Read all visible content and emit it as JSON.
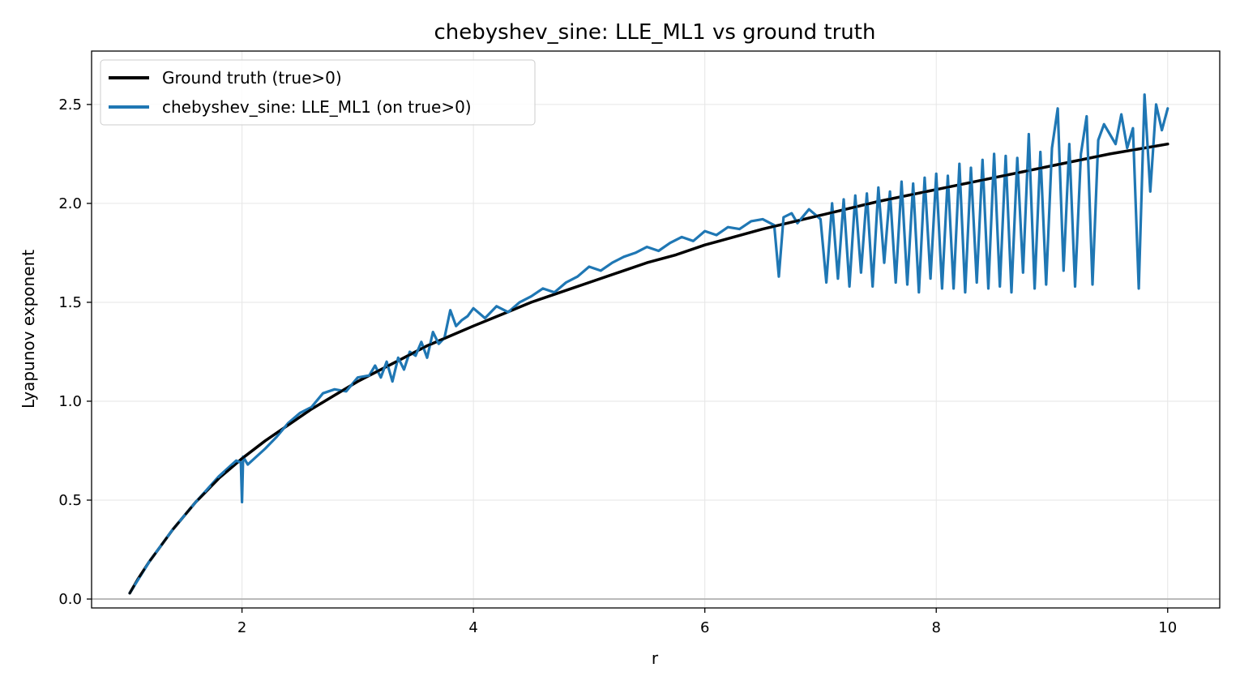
{
  "chart_data": {
    "type": "line",
    "title": "chebyshev_sine: LLE_ML1 vs ground truth",
    "xlabel": "r",
    "ylabel": "Lyapunov exponent",
    "xlim": [
      0.7,
      10.45
    ],
    "ylim": [
      -0.045,
      2.77
    ],
    "xticks": [
      2,
      4,
      6,
      8,
      10
    ],
    "yticks": [
      0.0,
      0.5,
      1.0,
      1.5,
      2.0,
      2.5
    ],
    "grid": true,
    "reference_line_y": 0,
    "legend_placement": "top-left",
    "series": [
      {
        "name": "Ground truth (true>0)",
        "color": "#000000",
        "x": [
          1.03,
          1.1,
          1.2,
          1.3,
          1.4,
          1.5,
          1.6,
          1.7,
          1.8,
          1.9,
          2.0,
          2.2,
          2.4,
          2.6,
          2.8,
          3.0,
          3.2,
          3.4,
          3.6,
          3.8,
          4.0,
          4.25,
          4.5,
          4.75,
          5.0,
          5.25,
          5.5,
          5.75,
          6.0,
          6.5,
          7.0,
          7.5,
          8.0,
          8.5,
          9.0,
          9.5,
          10.0
        ],
        "y": [
          0.03,
          0.1,
          0.19,
          0.27,
          0.35,
          0.42,
          0.49,
          0.55,
          0.61,
          0.66,
          0.71,
          0.8,
          0.88,
          0.96,
          1.03,
          1.1,
          1.16,
          1.22,
          1.28,
          1.33,
          1.38,
          1.44,
          1.5,
          1.55,
          1.6,
          1.65,
          1.7,
          1.74,
          1.79,
          1.87,
          1.94,
          2.01,
          2.07,
          2.13,
          2.19,
          2.25,
          2.3
        ]
      },
      {
        "name": "chebyshev_sine: LLE_ML1 (on true>0)",
        "color": "#1f77b4",
        "x": [
          1.03,
          1.2,
          1.4,
          1.6,
          1.8,
          1.95,
          1.99,
          2.0,
          2.01,
          2.05,
          2.2,
          2.3,
          2.4,
          2.5,
          2.6,
          2.7,
          2.8,
          2.9,
          3.0,
          3.1,
          3.15,
          3.2,
          3.25,
          3.3,
          3.35,
          3.4,
          3.45,
          3.5,
          3.55,
          3.6,
          3.65,
          3.7,
          3.75,
          3.8,
          3.85,
          3.9,
          3.95,
          4.0,
          4.1,
          4.2,
          4.3,
          4.4,
          4.5,
          4.6,
          4.7,
          4.8,
          4.9,
          5.0,
          5.1,
          5.2,
          5.3,
          5.4,
          5.5,
          5.6,
          5.7,
          5.8,
          5.9,
          6.0,
          6.1,
          6.2,
          6.3,
          6.4,
          6.5,
          6.6,
          6.64,
          6.68,
          6.75,
          6.8,
          6.9,
          7.0,
          7.05,
          7.1,
          7.15,
          7.2,
          7.25,
          7.3,
          7.35,
          7.4,
          7.45,
          7.5,
          7.55,
          7.6,
          7.65,
          7.7,
          7.75,
          7.8,
          7.85,
          7.9,
          7.95,
          8.0,
          8.05,
          8.1,
          8.15,
          8.2,
          8.25,
          8.3,
          8.35,
          8.4,
          8.45,
          8.5,
          8.55,
          8.6,
          8.65,
          8.7,
          8.75,
          8.8,
          8.85,
          8.9,
          8.95,
          9.0,
          9.05,
          9.1,
          9.15,
          9.2,
          9.25,
          9.3,
          9.35,
          9.4,
          9.45,
          9.5,
          9.55,
          9.6,
          9.65,
          9.7,
          9.75,
          9.8,
          9.85,
          9.9,
          9.95,
          10.0
        ],
        "y": [
          0.03,
          0.19,
          0.35,
          0.49,
          0.62,
          0.7,
          0.69,
          0.49,
          0.72,
          0.68,
          0.76,
          0.82,
          0.89,
          0.94,
          0.97,
          1.04,
          1.06,
          1.05,
          1.12,
          1.13,
          1.18,
          1.12,
          1.2,
          1.1,
          1.22,
          1.16,
          1.25,
          1.23,
          1.3,
          1.22,
          1.35,
          1.29,
          1.32,
          1.46,
          1.38,
          1.41,
          1.43,
          1.47,
          1.42,
          1.48,
          1.45,
          1.5,
          1.53,
          1.57,
          1.55,
          1.6,
          1.63,
          1.68,
          1.66,
          1.7,
          1.73,
          1.75,
          1.78,
          1.76,
          1.8,
          1.83,
          1.81,
          1.86,
          1.84,
          1.88,
          1.87,
          1.91,
          1.92,
          1.89,
          1.63,
          1.93,
          1.95,
          1.9,
          1.97,
          1.92,
          1.6,
          2.0,
          1.62,
          2.02,
          1.58,
          2.04,
          1.65,
          2.05,
          1.58,
          2.08,
          1.7,
          2.06,
          1.6,
          2.11,
          1.59,
          2.1,
          1.55,
          2.13,
          1.62,
          2.15,
          1.57,
          2.14,
          1.57,
          2.2,
          1.55,
          2.18,
          1.6,
          2.22,
          1.57,
          2.25,
          1.58,
          2.24,
          1.55,
          2.23,
          1.65,
          2.35,
          1.57,
          2.26,
          1.59,
          2.28,
          2.48,
          1.66,
          2.3,
          1.58,
          2.25,
          2.44,
          1.59,
          2.32,
          2.4,
          2.35,
          2.3,
          2.45,
          2.28,
          2.38,
          1.57,
          2.55,
          2.06,
          2.5,
          2.37,
          2.48
        ]
      }
    ]
  }
}
